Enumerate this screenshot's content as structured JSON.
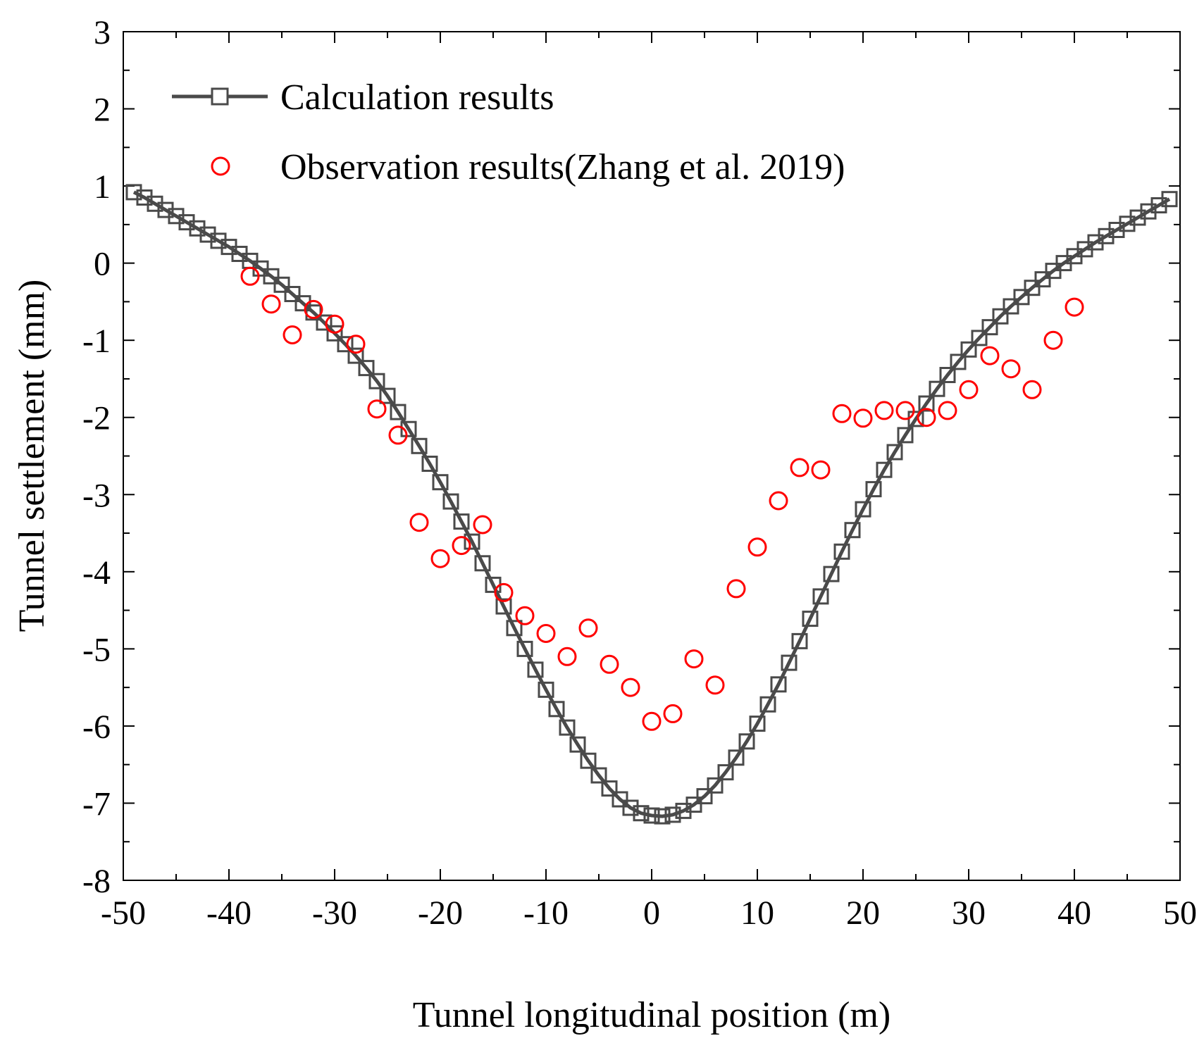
{
  "chart_data": {
    "type": "scatter",
    "title": "",
    "xlabel": "Tunnel longitudinal position (m)",
    "ylabel": "Tunnel settlement (mm)",
    "xlim": [
      -50,
      50
    ],
    "ylim": [
      -8,
      3
    ],
    "x_ticks": [
      -50,
      -40,
      -30,
      -20,
      -10,
      0,
      10,
      20,
      30,
      40,
      50
    ],
    "y_ticks": [
      3,
      2,
      1,
      0,
      -1,
      -2,
      -3,
      -4,
      -5,
      -6,
      -7,
      -8
    ],
    "grid": false,
    "legend_position": "top-left",
    "colors": {
      "calculation": "#4a4a4a",
      "observation": "#ff0000"
    },
    "series": [
      {
        "name": "Calculation results",
        "style": "line-square-markers",
        "x": [
          -49,
          -48,
          -47,
          -46,
          -45,
          -44,
          -43,
          -42,
          -41,
          -40,
          -39,
          -38,
          -37,
          -36,
          -35,
          -34,
          -33,
          -32,
          -31,
          -30,
          -29,
          -28,
          -27,
          -26,
          -25,
          -24,
          -23,
          -22,
          -21,
          -20,
          -19,
          -18,
          -17,
          -16,
          -15,
          -14,
          -13,
          -12,
          -11,
          -10,
          -9,
          -8,
          -7,
          -6,
          -5,
          -4,
          -3,
          -2,
          -1,
          0,
          1,
          2,
          3,
          4,
          5,
          6,
          7,
          8,
          9,
          10,
          11,
          12,
          13,
          14,
          15,
          16,
          17,
          18,
          19,
          20,
          21,
          22,
          23,
          24,
          25,
          26,
          27,
          28,
          29,
          30,
          31,
          32,
          33,
          34,
          35,
          36,
          37,
          38,
          39,
          40,
          41,
          42,
          43,
          44,
          45,
          46,
          47,
          48,
          49
        ],
        "y": [
          0.92,
          0.85,
          0.77,
          0.69,
          0.61,
          0.53,
          0.45,
          0.37,
          0.29,
          0.21,
          0.12,
          0.03,
          -0.07,
          -0.17,
          -0.28,
          -0.4,
          -0.52,
          -0.64,
          -0.77,
          -0.91,
          -1.05,
          -1.2,
          -1.36,
          -1.53,
          -1.72,
          -1.93,
          -2.15,
          -2.37,
          -2.6,
          -2.84,
          -3.09,
          -3.35,
          -3.61,
          -3.89,
          -4.17,
          -4.45,
          -4.73,
          -5.0,
          -5.27,
          -5.53,
          -5.78,
          -6.02,
          -6.24,
          -6.45,
          -6.64,
          -6.81,
          -6.95,
          -7.06,
          -7.13,
          -7.16,
          -7.17,
          -7.15,
          -7.1,
          -7.02,
          -6.91,
          -6.77,
          -6.6,
          -6.41,
          -6.2,
          -5.97,
          -5.72,
          -5.46,
          -5.18,
          -4.9,
          -4.61,
          -4.32,
          -4.03,
          -3.74,
          -3.46,
          -3.19,
          -2.93,
          -2.68,
          -2.45,
          -2.23,
          -2.02,
          -1.82,
          -1.63,
          -1.45,
          -1.28,
          -1.12,
          -0.97,
          -0.83,
          -0.69,
          -0.56,
          -0.44,
          -0.32,
          -0.21,
          -0.1,
          0.0,
          0.09,
          0.18,
          0.27,
          0.35,
          0.43,
          0.51,
          0.59,
          0.67,
          0.75,
          0.83
        ]
      },
      {
        "name": "Observation results(Zhang et al. 2019)",
        "style": "open-circle-markers",
        "x": [
          -38,
          -36,
          -34,
          -32,
          -30,
          -28,
          -26,
          -24,
          -22,
          -20,
          -18,
          -16,
          -14,
          -12,
          -10,
          -8,
          -6,
          -4,
          -2,
          0,
          2,
          4,
          6,
          8,
          10,
          12,
          14,
          16,
          18,
          20,
          22,
          24,
          26,
          28,
          30,
          32,
          34,
          36,
          38,
          40
        ],
        "y": [
          -0.17,
          -0.53,
          -0.93,
          -0.6,
          -0.79,
          -1.05,
          -1.89,
          -2.23,
          -3.36,
          -3.83,
          -3.66,
          -3.39,
          -4.27,
          -4.57,
          -4.8,
          -5.1,
          -4.73,
          -5.2,
          -5.5,
          -5.94,
          -5.84,
          -5.13,
          -5.47,
          -4.22,
          -3.68,
          -3.08,
          -2.65,
          -2.68,
          -1.95,
          -2.01,
          -1.91,
          -1.91,
          -2.0,
          -1.91,
          -1.64,
          -1.2,
          -1.37,
          -1.64,
          -1.0,
          -0.57
        ]
      }
    ]
  }
}
